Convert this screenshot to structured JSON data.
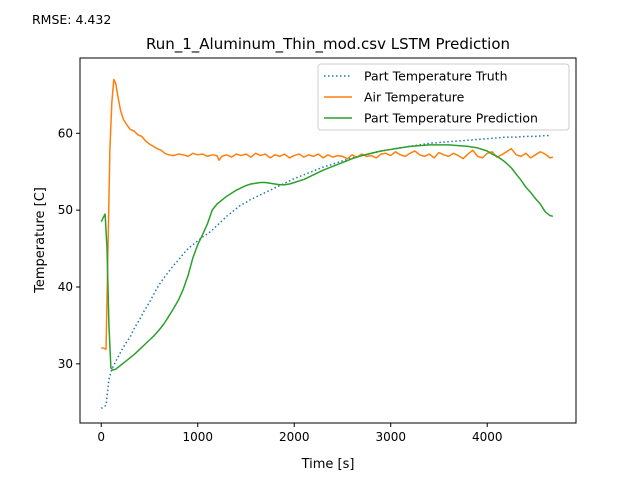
{
  "annotation": "RMSE: 4.432",
  "chart_data": {
    "type": "line",
    "title": "Run_1_Aluminum_Thin_mod.csv LSTM Prediction",
    "xlabel": "Time [s]",
    "ylabel": "Temperature [C]",
    "xlim": [
      -220,
      4920
    ],
    "ylim": [
      22.3,
      69.8
    ],
    "xticks": [
      0,
      1000,
      2000,
      3000,
      4000
    ],
    "yticks": [
      30,
      40,
      50,
      60
    ],
    "grid": false,
    "legend_position": "upper right",
    "series": [
      {
        "name": "Part Temperature Truth",
        "color": "#1f77b4",
        "style": "dotted",
        "x": [
          0,
          50,
          80,
          110,
          150,
          200,
          250,
          300,
          350,
          400,
          450,
          500,
          550,
          600,
          650,
          700,
          750,
          800,
          850,
          900,
          950,
          1000,
          1050,
          1100,
          1150,
          1200,
          1250,
          1300,
          1350,
          1400,
          1450,
          1500,
          1550,
          1600,
          1650,
          1700,
          1750,
          1800,
          1850,
          1900,
          1950,
          2000,
          2100,
          2200,
          2300,
          2400,
          2500,
          2600,
          2700,
          2800,
          2900,
          3000,
          3100,
          3200,
          3300,
          3400,
          3500,
          3600,
          3700,
          3800,
          3900,
          4000,
          4100,
          4200,
          4300,
          4400,
          4500,
          4600,
          4650
        ],
        "y": [
          24.2,
          24.6,
          28.0,
          29.3,
          30.3,
          31.5,
          32.6,
          33.5,
          34.8,
          35.8,
          37.0,
          38.0,
          39.2,
          40.3,
          41.2,
          42.0,
          42.8,
          43.5,
          44.3,
          45.0,
          45.5,
          46.0,
          46.5,
          46.9,
          47.4,
          48.0,
          48.6,
          49.2,
          49.7,
          50.2,
          50.7,
          51.0,
          51.4,
          51.7,
          52.0,
          52.3,
          52.6,
          52.9,
          53.2,
          53.5,
          53.8,
          54.1,
          54.6,
          55.1,
          55.6,
          56.0,
          56.4,
          56.8,
          57.1,
          57.4,
          57.7,
          57.9,
          58.1,
          58.3,
          58.5,
          58.7,
          58.8,
          58.9,
          59.0,
          59.1,
          59.2,
          59.3,
          59.4,
          59.5,
          59.5,
          59.6,
          59.6,
          59.7,
          59.7
        ]
      },
      {
        "name": "Air Temperature",
        "color": "#ff7f0e",
        "style": "solid",
        "x": [
          0,
          30,
          50,
          70,
          90,
          110,
          130,
          150,
          170,
          200,
          230,
          260,
          300,
          340,
          380,
          420,
          460,
          500,
          540,
          580,
          620,
          660,
          700,
          750,
          800,
          850,
          900,
          950,
          1000,
          1050,
          1100,
          1150,
          1200,
          1220,
          1250,
          1300,
          1350,
          1400,
          1450,
          1500,
          1550,
          1600,
          1650,
          1700,
          1750,
          1800,
          1850,
          1900,
          1950,
          2000,
          2050,
          2100,
          2150,
          2200,
          2250,
          2300,
          2350,
          2400,
          2450,
          2500,
          2550,
          2600,
          2650,
          2700,
          2750,
          2800,
          2850,
          2900,
          2950,
          3000,
          3050,
          3100,
          3150,
          3200,
          3250,
          3300,
          3350,
          3400,
          3450,
          3500,
          3550,
          3600,
          3650,
          3700,
          3750,
          3800,
          3850,
          3900,
          3950,
          4000,
          4050,
          4100,
          4150,
          4200,
          4250,
          4300,
          4350,
          4400,
          4450,
          4500,
          4550,
          4600,
          4650,
          4680
        ],
        "y": [
          32.1,
          32.0,
          31.9,
          45.0,
          58.0,
          64.0,
          67.0,
          66.5,
          65.0,
          63.0,
          61.8,
          61.2,
          60.5,
          60.3,
          59.8,
          59.6,
          59.0,
          58.6,
          58.3,
          58.0,
          57.8,
          57.4,
          57.2,
          57.1,
          57.3,
          57.2,
          57.0,
          57.4,
          57.2,
          57.3,
          57.0,
          57.2,
          57.1,
          56.5,
          57.0,
          57.2,
          56.9,
          57.3,
          57.1,
          57.3,
          56.9,
          57.4,
          57.1,
          57.3,
          56.8,
          57.2,
          57.0,
          57.3,
          56.8,
          57.1,
          57.3,
          56.9,
          57.2,
          57.0,
          57.3,
          56.8,
          57.2,
          56.9,
          57.1,
          57.0,
          56.7,
          57.2,
          56.9,
          57.3,
          57.0,
          57.1,
          56.8,
          57.3,
          57.4,
          57.1,
          57.6,
          57.2,
          57.0,
          57.4,
          57.7,
          57.2,
          57.0,
          57.3,
          56.8,
          57.5,
          57.2,
          57.0,
          57.4,
          57.1,
          56.7,
          57.3,
          57.8,
          57.0,
          56.8,
          57.4,
          57.6,
          56.9,
          57.2,
          57.6,
          58.0,
          57.2,
          57.0,
          57.4,
          56.8,
          57.2,
          57.6,
          57.3,
          56.8,
          56.9
        ]
      },
      {
        "name": "Part Temperature Prediction",
        "color": "#2ca02c",
        "style": "solid",
        "x": [
          0,
          20,
          40,
          60,
          80,
          100,
          120,
          150,
          200,
          250,
          300,
          350,
          400,
          450,
          500,
          550,
          600,
          650,
          700,
          750,
          800,
          850,
          900,
          950,
          1000,
          1050,
          1100,
          1150,
          1200,
          1250,
          1300,
          1350,
          1400,
          1450,
          1500,
          1550,
          1600,
          1650,
          1700,
          1750,
          1800,
          1850,
          1900,
          1950,
          2000,
          2100,
          2200,
          2300,
          2400,
          2500,
          2600,
          2700,
          2800,
          2900,
          3000,
          3100,
          3200,
          3300,
          3400,
          3500,
          3600,
          3700,
          3800,
          3900,
          4000,
          4050,
          4100,
          4150,
          4200,
          4250,
          4300,
          4350,
          4400,
          4450,
          4500,
          4550,
          4600,
          4650,
          4680
        ],
        "y": [
          48.5,
          49.0,
          49.5,
          45.0,
          35.0,
          29.5,
          29.2,
          29.3,
          29.8,
          30.3,
          30.8,
          31.3,
          31.9,
          32.5,
          33.1,
          33.7,
          34.4,
          35.2,
          36.2,
          37.2,
          38.3,
          39.7,
          41.5,
          43.8,
          45.5,
          46.8,
          48.2,
          50.0,
          50.8,
          51.3,
          51.8,
          52.2,
          52.6,
          52.9,
          53.2,
          53.4,
          53.5,
          53.6,
          53.6,
          53.5,
          53.4,
          53.3,
          53.3,
          53.4,
          53.6,
          54.0,
          54.6,
          55.2,
          55.7,
          56.2,
          56.7,
          57.1,
          57.4,
          57.7,
          57.9,
          58.1,
          58.3,
          58.4,
          58.5,
          58.5,
          58.5,
          58.4,
          58.3,
          58.1,
          57.7,
          57.3,
          57.0,
          56.6,
          56.1,
          55.5,
          54.7,
          53.9,
          53.0,
          52.3,
          51.5,
          50.8,
          49.8,
          49.3,
          49.2
        ]
      }
    ]
  }
}
